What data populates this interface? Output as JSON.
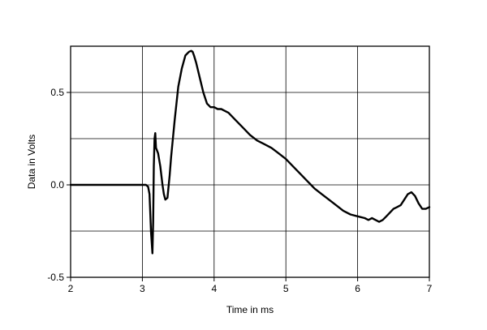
{
  "chart_data": {
    "type": "line",
    "title": "",
    "xlabel": "Time in ms",
    "ylabel": "Data in Volts",
    "xlim": [
      2,
      7
    ],
    "ylim": [
      -0.5,
      0.75
    ],
    "x_ticks": [
      2,
      3,
      4,
      5,
      6,
      7
    ],
    "x_tick_labels": [
      "2",
      "3",
      "4",
      "5",
      "6",
      "7"
    ],
    "y_ticks": [
      -0.5,
      0.0,
      0.5
    ],
    "y_tick_labels": [
      "-0.5",
      "0.0",
      "0.5"
    ],
    "x_gridlines": [
      3,
      4,
      5,
      6
    ],
    "y_gridlines": [
      -0.25,
      0.0,
      0.25,
      0.5
    ],
    "grid": true,
    "line_color": "#000000",
    "series": [
      {
        "x": [
          2.0,
          2.5,
          3.0,
          3.05,
          3.08,
          3.1,
          3.12,
          3.14,
          3.15,
          3.16,
          3.17,
          3.18,
          3.19,
          3.2,
          3.22,
          3.25,
          3.28,
          3.3,
          3.32,
          3.35,
          3.38,
          3.4,
          3.45,
          3.5,
          3.55,
          3.6,
          3.65,
          3.68,
          3.7,
          3.72,
          3.75,
          3.8,
          3.85,
          3.9,
          3.95,
          4.0,
          4.05,
          4.1,
          4.15,
          4.2,
          4.3,
          4.4,
          4.5,
          4.6,
          4.7,
          4.8,
          4.9,
          5.0,
          5.1,
          5.2,
          5.3,
          5.4,
          5.5,
          5.6,
          5.7,
          5.8,
          5.9,
          6.0,
          6.1,
          6.15,
          6.2,
          6.25,
          6.3,
          6.35,
          6.4,
          6.45,
          6.5,
          6.55,
          6.6,
          6.65,
          6.7,
          6.75,
          6.8,
          6.85,
          6.9,
          6.95,
          7.0
        ],
        "y": [
          0.0,
          0.0,
          0.0,
          0.0,
          -0.01,
          -0.05,
          -0.25,
          -0.37,
          -0.2,
          0.1,
          0.25,
          0.28,
          0.2,
          0.19,
          0.17,
          0.1,
          0.0,
          -0.05,
          -0.08,
          -0.07,
          0.05,
          0.15,
          0.35,
          0.53,
          0.63,
          0.7,
          0.72,
          0.725,
          0.72,
          0.7,
          0.66,
          0.58,
          0.5,
          0.44,
          0.42,
          0.42,
          0.41,
          0.41,
          0.4,
          0.39,
          0.35,
          0.31,
          0.27,
          0.24,
          0.22,
          0.2,
          0.17,
          0.14,
          0.1,
          0.06,
          0.02,
          -0.02,
          -0.05,
          -0.08,
          -0.11,
          -0.14,
          -0.16,
          -0.17,
          -0.18,
          -0.19,
          -0.18,
          -0.19,
          -0.2,
          -0.19,
          -0.17,
          -0.15,
          -0.13,
          -0.12,
          -0.11,
          -0.08,
          -0.05,
          -0.04,
          -0.06,
          -0.1,
          -0.13,
          -0.13,
          -0.12
        ]
      }
    ]
  }
}
